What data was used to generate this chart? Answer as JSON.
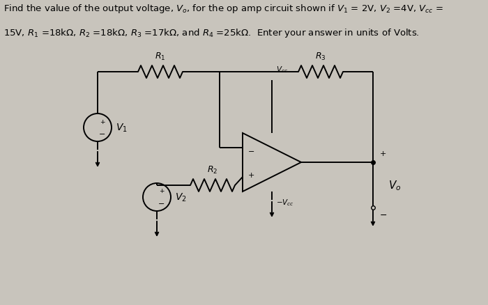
{
  "bg_color": "#c8c4bc",
  "text_color": "#000000",
  "line_color": "#000000",
  "title_line1": "Find the value of the output voltage, $V_o$, for the op amp circuit shown if $V_1$ = 2V, $V_2$ =4V, $V_{cc}$ =",
  "title_line2": "15V, $R_1$ =18k$\\Omega$, $R_2$ =18k$\\Omega$, $R_3$ =17k$\\Omega$, and $R_4$ =25k$\\Omega$.  Enter your answer in units of Volts.",
  "font_size_text": 9.5,
  "V1_label": "$V_1$",
  "V2_label": "$V_2$",
  "R1_label": "$R_1$",
  "R2_label": "$R_2$",
  "R3_label": "$R_3$",
  "Vcc_label": "$V_{cc}$",
  "neg_Vcc_label": "$-V_{cc}$",
  "Vo_label": "$V_o$"
}
